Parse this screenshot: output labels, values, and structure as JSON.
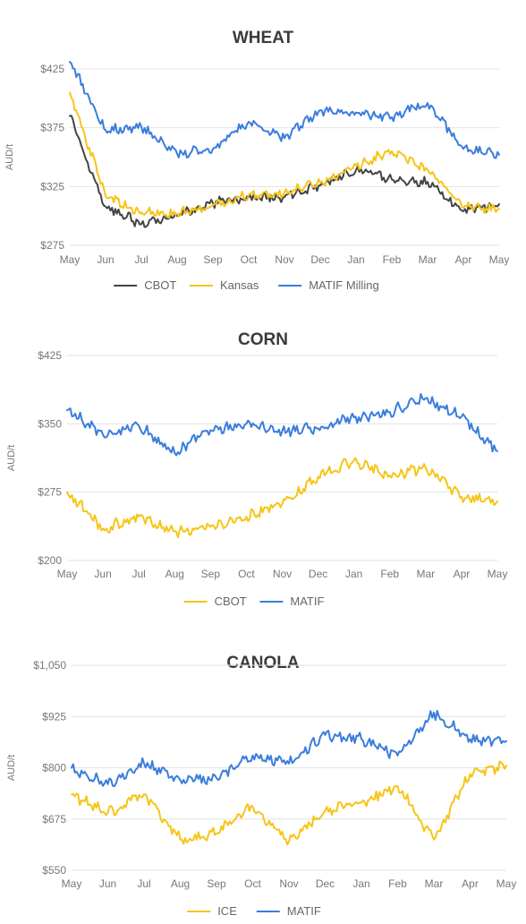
{
  "chart_data": [
    {
      "type": "line",
      "title": "WHEAT",
      "ylabel": "AUD/t",
      "ylim": [
        275,
        425
      ],
      "yticks": [
        275,
        325,
        375,
        425
      ],
      "ytick_labels": [
        "$275",
        "$325",
        "$375",
        "$425"
      ],
      "x": [
        "May",
        "Jun",
        "Jul",
        "Aug",
        "Sep",
        "Oct",
        "Nov",
        "Dec",
        "Jan",
        "Feb",
        "Mar",
        "Apr",
        "May"
      ],
      "series": [
        {
          "name": "CBOT",
          "color": "#444444",
          "values": [
            385,
            308,
            293,
            300,
            311,
            316,
            316,
            326,
            339,
            331,
            329,
            304,
            310
          ]
        },
        {
          "name": "Kansas",
          "color": "#F5C518",
          "values": [
            405,
            317,
            303,
            302,
            309,
            318,
            320,
            328,
            343,
            355,
            339,
            307,
            306
          ]
        },
        {
          "name": "MATIF Milling",
          "color": "#3B7DDD",
          "values": [
            432,
            373,
            376,
            353,
            357,
            380,
            366,
            390,
            388,
            384,
            396,
            357,
            352
          ]
        }
      ],
      "grid": true,
      "legend": "bottom"
    },
    {
      "type": "line",
      "title": "CORN",
      "ylabel": "AUD/t",
      "ylim": [
        200,
        425
      ],
      "yticks": [
        200,
        275,
        350,
        425
      ],
      "ytick_labels": [
        "$200",
        "$275",
        "$350",
        "$425"
      ],
      "x": [
        "May",
        "Jun",
        "Jul",
        "Aug",
        "Sep",
        "Oct",
        "Nov",
        "Dec",
        "Jan",
        "Feb",
        "Mar",
        "Apr",
        "May"
      ],
      "series": [
        {
          "name": "CBOT",
          "color": "#F5C518",
          "values": [
            275,
            235,
            248,
            232,
            237,
            248,
            262,
            292,
            310,
            293,
            302,
            270,
            265
          ]
        },
        {
          "name": "MATIF",
          "color": "#3B7DDD",
          "values": [
            365,
            338,
            348,
            318,
            343,
            350,
            342,
            345,
            357,
            363,
            378,
            358,
            320
          ]
        }
      ],
      "grid": true,
      "legend": "bottom"
    },
    {
      "type": "line",
      "title": "CANOLA",
      "ylabel": "AUD/t",
      "ylim": [
        550,
        1050
      ],
      "yticks": [
        550,
        675,
        800,
        925,
        1050
      ],
      "ytick_labels": [
        "$550",
        "$675",
        "$800",
        "$925",
        "$1,050"
      ],
      "x": [
        "May",
        "Jun",
        "Jul",
        "Aug",
        "Sep",
        "Oct",
        "Nov",
        "Dec",
        "Jan",
        "Feb",
        "Mar",
        "Apr",
        "May"
      ],
      "series": [
        {
          "name": "ICE",
          "color": "#F5C518",
          "values": [
            735,
            690,
            735,
            625,
            640,
            705,
            620,
            695,
            715,
            755,
            625,
            785,
            805
          ]
        },
        {
          "name": "MATIF",
          "color": "#3B7DDD",
          "values": [
            800,
            760,
            810,
            770,
            775,
            830,
            810,
            880,
            870,
            830,
            935,
            870,
            865
          ]
        }
      ],
      "grid": true,
      "legend": "bottom"
    }
  ]
}
